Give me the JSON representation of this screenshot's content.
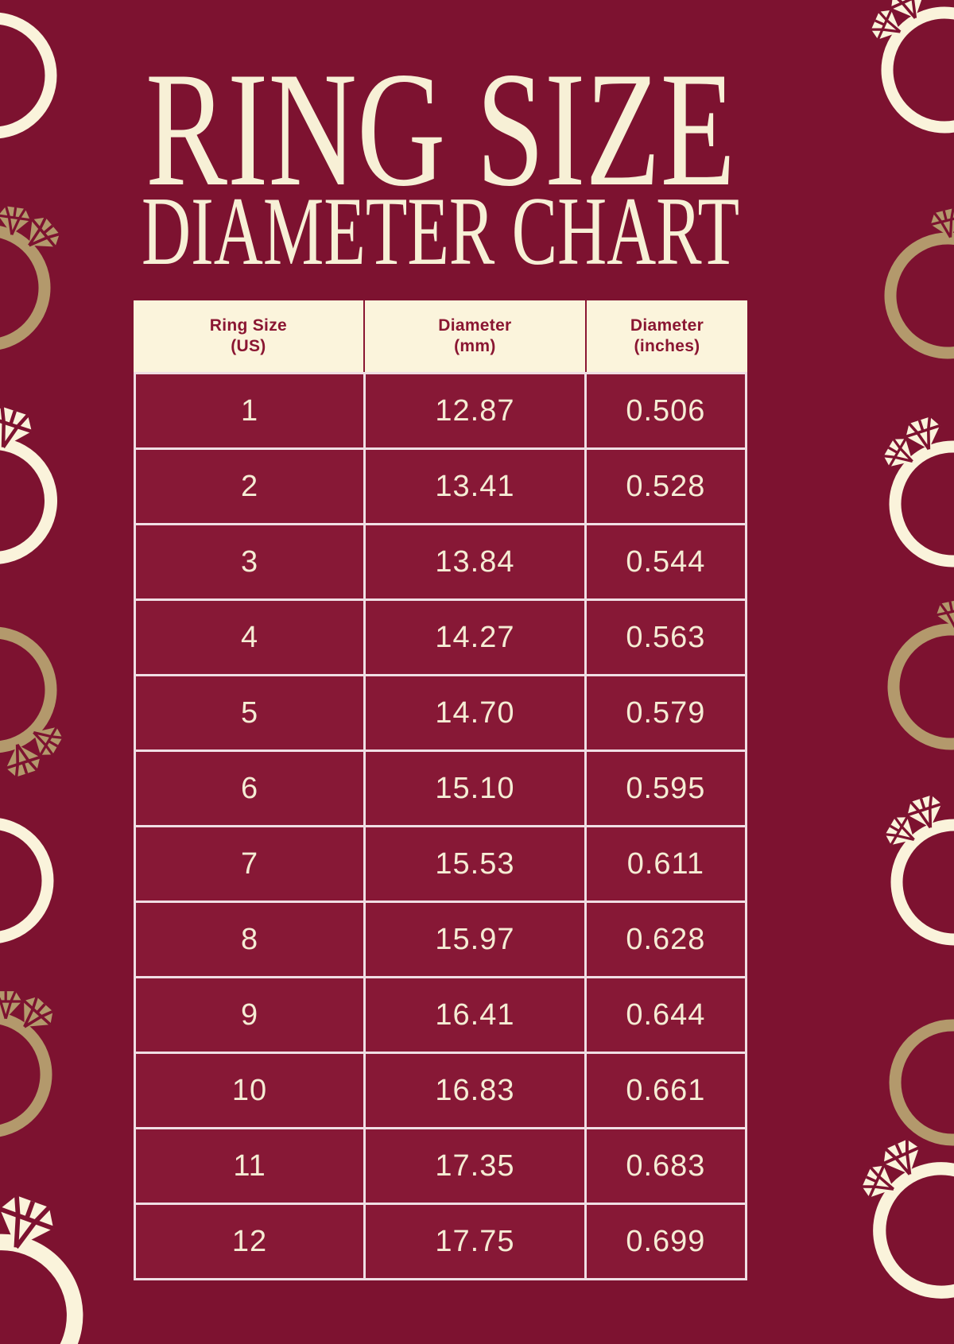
{
  "page": {
    "title_line1": "RING SIZE",
    "title_line2": "DIAMETER CHART"
  },
  "table": {
    "headers": [
      {
        "line1": "Ring Size",
        "line2": "(US)"
      },
      {
        "line1": "Diameter",
        "line2": "(mm)"
      },
      {
        "line1": "Diameter",
        "line2": "(inches)"
      }
    ],
    "rows": [
      {
        "size": "1",
        "mm": "12.87",
        "inches": "0.506"
      },
      {
        "size": "2",
        "mm": "13.41",
        "inches": "0.528"
      },
      {
        "size": "3",
        "mm": "13.84",
        "inches": "0.544"
      },
      {
        "size": "4",
        "mm": "14.27",
        "inches": "0.563"
      },
      {
        "size": "5",
        "mm": "14.70",
        "inches": "0.579"
      },
      {
        "size": "6",
        "mm": "15.10",
        "inches": "0.595"
      },
      {
        "size": "7",
        "mm": "15.53",
        "inches": "0.611"
      },
      {
        "size": "8",
        "mm": "15.97",
        "inches": "0.628"
      },
      {
        "size": "9",
        "mm": "16.41",
        "inches": "0.644"
      },
      {
        "size": "10",
        "mm": "16.83",
        "inches": "0.661"
      },
      {
        "size": "11",
        "mm": "17.35",
        "inches": "0.683"
      },
      {
        "size": "12",
        "mm": "17.75",
        "inches": "0.699"
      }
    ]
  },
  "chart_data": {
    "type": "table",
    "title": "RING SIZE DIAMETER CHART",
    "columns": [
      "Ring Size (US)",
      "Diameter (mm)",
      "Diameter (inches)"
    ],
    "ring_sizes_us": [
      1,
      2,
      3,
      4,
      5,
      6,
      7,
      8,
      9,
      10,
      11,
      12
    ],
    "diameter_mm": [
      12.87,
      13.41,
      13.84,
      14.27,
      14.7,
      15.1,
      15.53,
      15.97,
      16.41,
      16.83,
      17.35,
      17.75
    ],
    "diameter_inches": [
      0.506,
      0.528,
      0.544,
      0.563,
      0.579,
      0.595,
      0.611,
      0.628,
      0.644,
      0.661,
      0.683,
      0.699
    ]
  },
  "colors": {
    "background": "#7D1230",
    "cell_background": "#871836",
    "header_background": "#FBF4DC",
    "header_text": "#8A1632",
    "cell_text": "#F5ECD4",
    "title_text": "#F7F0D6",
    "table_border": "#F0DEE4",
    "ring_cream": "#FAF3DB",
    "ring_gold": "#B3996C"
  },
  "icons": {
    "decorative": "diamond-ring-icon"
  }
}
